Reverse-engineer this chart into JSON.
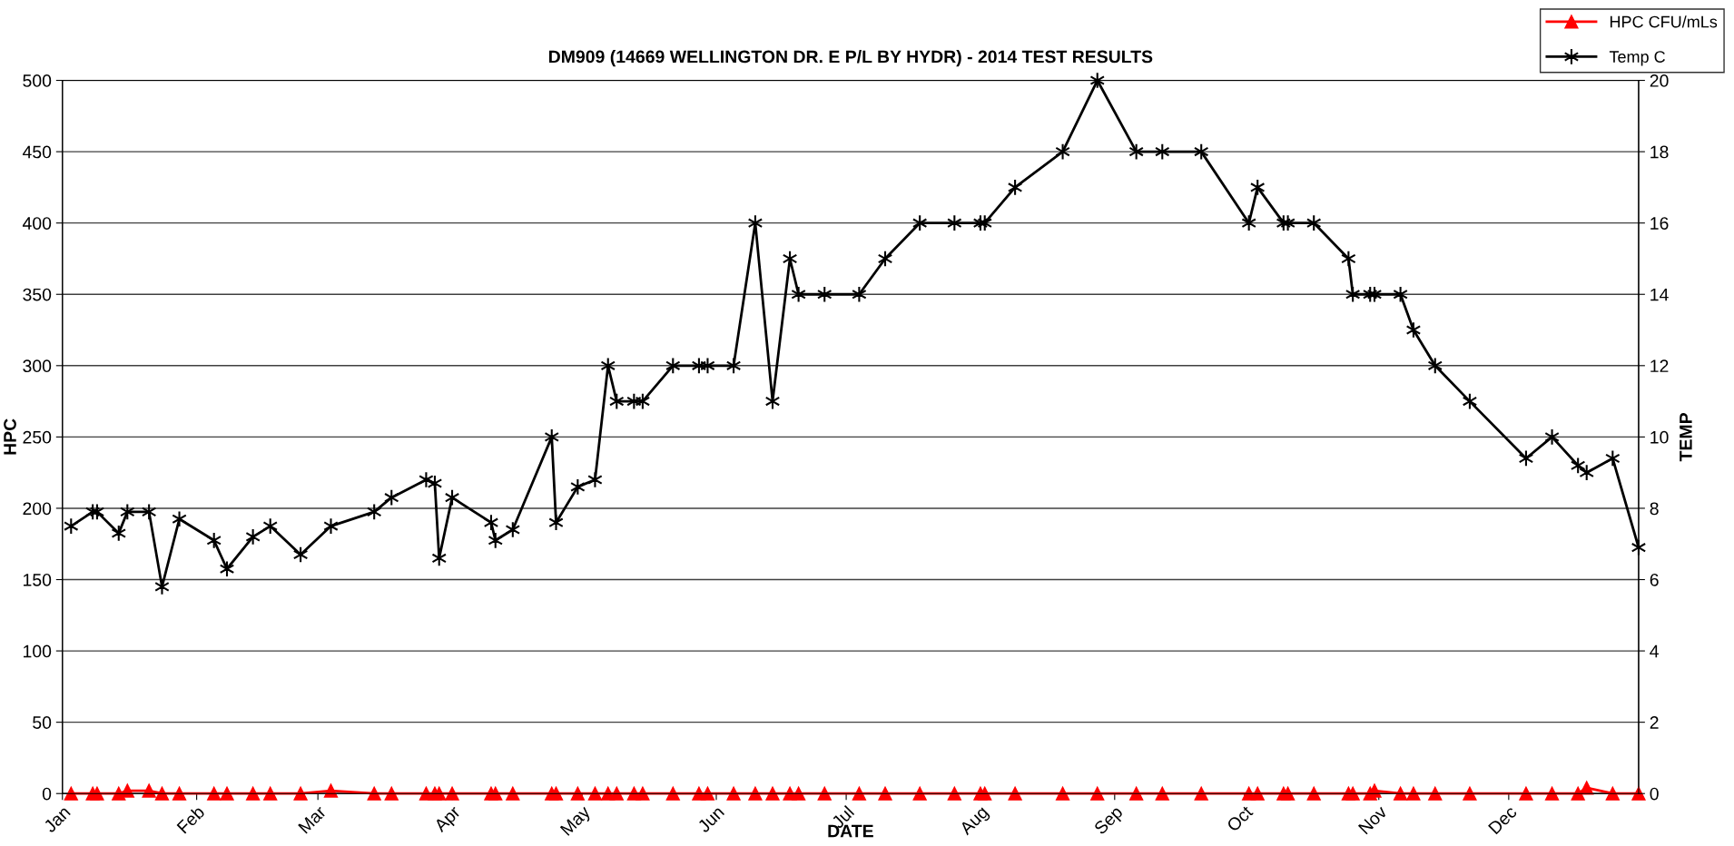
{
  "chart_data": {
    "type": "line",
    "title": "DM909 (14669 WELLINGTON DR. E P/L BY HYDR) - 2014 TEST RESULTS",
    "xlabel": "DATE",
    "ylabel": "HPC",
    "y2label": "TEMP",
    "x": [
      "2014-01-03",
      "2014-01-08",
      "2014-01-09",
      "2014-01-14",
      "2014-01-16",
      "2014-01-21",
      "2014-01-24",
      "2014-01-28",
      "2014-02-05",
      "2014-02-08",
      "2014-02-14",
      "2014-02-18",
      "2014-02-25",
      "2014-03-04",
      "2014-03-14",
      "2014-03-18",
      "2014-03-26",
      "2014-03-28",
      "2014-03-29",
      "2014-04-01",
      "2014-04-10",
      "2014-04-11",
      "2014-04-15",
      "2014-04-24",
      "2014-04-25",
      "2014-04-30",
      "2014-05-04",
      "2014-05-07",
      "2014-05-09",
      "2014-05-13",
      "2014-05-15",
      "2014-05-22",
      "2014-05-28",
      "2014-05-30",
      "2014-06-05",
      "2014-06-10",
      "2014-06-14",
      "2014-06-18",
      "2014-06-20",
      "2014-06-26",
      "2014-07-04",
      "2014-07-10",
      "2014-07-18",
      "2014-07-26",
      "2014-08-01",
      "2014-08-02",
      "2014-08-09",
      "2014-08-20",
      "2014-08-28",
      "2014-09-06",
      "2014-09-12",
      "2014-09-21",
      "2014-10-02",
      "2014-10-04",
      "2014-10-10",
      "2014-10-11",
      "2014-10-17",
      "2014-10-25",
      "2014-10-26",
      "2014-10-30",
      "2014-10-31",
      "2014-11-06",
      "2014-11-09",
      "2014-11-14",
      "2014-11-22",
      "2014-12-05",
      "2014-12-11",
      "2014-12-17",
      "2014-12-19",
      "2014-12-25",
      "2014-12-31"
    ],
    "series": [
      {
        "name": "HPC CFU/mLs",
        "color": "#ff0000",
        "marker": "triangle",
        "values": [
          0,
          0,
          0,
          0,
          2,
          2,
          0,
          0,
          0,
          0,
          0,
          0,
          0,
          2,
          0,
          0,
          0,
          0,
          0,
          0,
          0,
          0,
          0,
          0,
          0,
          0,
          0,
          0,
          0,
          0,
          0,
          0,
          0,
          0,
          0,
          0,
          0,
          0,
          0,
          0,
          0,
          0,
          0,
          0,
          0,
          0,
          0,
          0,
          0,
          0,
          0,
          0,
          0,
          0,
          0,
          0,
          0,
          0,
          0,
          0,
          2,
          0,
          0,
          0,
          0,
          0,
          0,
          0,
          4,
          0,
          0
        ]
      },
      {
        "name": "Temp C",
        "color": "#000000",
        "marker": "cross",
        "axis": "y2",
        "values": [
          7.5,
          7.9,
          7.9,
          7.3,
          7.9,
          7.9,
          5.8,
          7.7,
          7.1,
          6.3,
          7.2,
          7.5,
          6.7,
          7.5,
          7.9,
          8.3,
          8.8,
          8.7,
          6.6,
          8.3,
          7.6,
          7.1,
          7.4,
          10,
          7.6,
          8.6,
          8.8,
          12,
          11,
          11,
          11,
          12,
          12,
          12,
          12,
          16,
          11,
          15,
          14,
          14,
          14,
          15,
          16,
          16,
          16,
          16,
          17,
          18,
          20,
          18,
          18,
          18,
          16,
          17,
          16,
          16,
          16,
          15,
          14,
          14,
          14,
          14,
          13,
          12,
          11,
          9.4,
          10,
          9.2,
          9,
          9.4,
          6.9
        ]
      }
    ],
    "xlim": [
      "2014-01-01",
      "2014-12-31"
    ],
    "xticks": [
      {
        "value": "2014-01-01",
        "label": "Jan"
      },
      {
        "value": "2014-02-01",
        "label": "Feb"
      },
      {
        "value": "2014-03-01",
        "label": "Mar"
      },
      {
        "value": "2014-04-01",
        "label": "Apr"
      },
      {
        "value": "2014-05-01",
        "label": "May"
      },
      {
        "value": "2014-06-01",
        "label": "Jun"
      },
      {
        "value": "2014-07-01",
        "label": "Jul"
      },
      {
        "value": "2014-08-01",
        "label": "Aug"
      },
      {
        "value": "2014-09-01",
        "label": "Sep"
      },
      {
        "value": "2014-10-01",
        "label": "Oct"
      },
      {
        "value": "2014-11-01",
        "label": "Nov"
      },
      {
        "value": "2014-12-01",
        "label": "Dec"
      }
    ],
    "ylim": [
      0,
      500
    ],
    "yticks": [
      0,
      50,
      100,
      150,
      200,
      250,
      300,
      350,
      400,
      450,
      500
    ],
    "y2lim": [
      0,
      20
    ],
    "y2ticks": [
      0,
      2,
      4,
      6,
      8,
      10,
      12,
      14,
      16,
      18,
      20
    ],
    "grid": "y",
    "legend": "top right",
    "line_style": "solid"
  }
}
